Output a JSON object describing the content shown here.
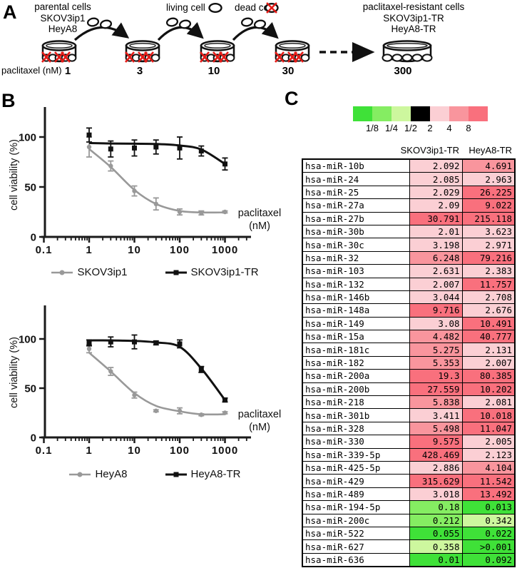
{
  "panel_a": {
    "label": "A",
    "parental_lines": [
      "parental cells",
      "SKOV3ip1",
      "HeyA8"
    ],
    "living_cell_label": "living cell",
    "dead_cell_label": "dead cell",
    "resistant_lines": [
      "paclitaxel-resistant cells",
      "SKOV3ip1-TR",
      "HeyA8-TR"
    ],
    "dose_axis_label": "paclitaxel (nM)",
    "doses": [
      "1",
      "3",
      "10",
      "30",
      "300"
    ]
  },
  "panel_b": {
    "label": "B"
  },
  "panel_c": {
    "label": "C",
    "scale_legend": {
      "colors": [
        "#3fe138",
        "#85ed62",
        "#cdf79e",
        "#000000",
        "#fbcfd4",
        "#f9959d",
        "#f9707d"
      ],
      "labels": [
        "1/8",
        "1/4",
        "1/2",
        "2",
        "4",
        "8"
      ]
    },
    "column_headers": [
      "SKOV3ip1-TR",
      "HeyA8-TR"
    ],
    "rows": [
      {
        "name": "hsa-miR-10b",
        "values": [
          "2.092",
          "4.691"
        ]
      },
      {
        "name": "hsa-miR-24",
        "values": [
          "2.085",
          "2.963"
        ]
      },
      {
        "name": "hsa-miR-25",
        "values": [
          "2.029",
          "26.225"
        ]
      },
      {
        "name": "hsa-miR-27a",
        "values": [
          "2.09",
          "9.022"
        ]
      },
      {
        "name": "hsa-miR-27b",
        "values": [
          "30.791",
          "215.118"
        ]
      },
      {
        "name": "hsa-miR-30b",
        "values": [
          "2.01",
          "3.623"
        ]
      },
      {
        "name": "hsa-miR-30c",
        "values": [
          "3.198",
          "2.971"
        ]
      },
      {
        "name": "hsa-miR-32",
        "values": [
          "6.248",
          "79.216"
        ]
      },
      {
        "name": "hsa-miR-103",
        "values": [
          "2.631",
          "2.383"
        ]
      },
      {
        "name": "hsa-miR-132",
        "values": [
          "2.007",
          "11.757"
        ]
      },
      {
        "name": "hsa-miR-146b",
        "values": [
          "3.044",
          "2.708"
        ]
      },
      {
        "name": "hsa-miR-148a",
        "values": [
          "9.716",
          "2.676"
        ]
      },
      {
        "name": "hsa-miR-149",
        "values": [
          "3.08",
          "10.491"
        ]
      },
      {
        "name": "hsa-miR-15a",
        "values": [
          "4.482",
          "40.777"
        ]
      },
      {
        "name": "hsa-miR-181c",
        "values": [
          "5.275",
          "2.131"
        ]
      },
      {
        "name": "hsa-miR-182",
        "values": [
          "5.353",
          "2.007"
        ]
      },
      {
        "name": "hsa-miR-200a",
        "values": [
          "19.3",
          "80.385"
        ]
      },
      {
        "name": "hsa-miR-200b",
        "values": [
          "27.559",
          "10.202"
        ]
      },
      {
        "name": "hsa-miR-218",
        "values": [
          "5.838",
          "2.081"
        ]
      },
      {
        "name": "hsa-miR-301b",
        "values": [
          "3.411",
          "10.018"
        ]
      },
      {
        "name": "hsa-miR-328",
        "values": [
          "5.498",
          "11.047"
        ]
      },
      {
        "name": "hsa-miR-330",
        "values": [
          "9.575",
          "2.005"
        ]
      },
      {
        "name": "hsa-miR-339-5p",
        "values": [
          "428.469",
          "2.123"
        ]
      },
      {
        "name": "hsa-miR-425-5p",
        "values": [
          "2.886",
          "4.104"
        ]
      },
      {
        "name": "hsa-miR-429",
        "values": [
          "315.629",
          "11.542"
        ]
      },
      {
        "name": "hsa-miR-489",
        "values": [
          "3.018",
          "13.492"
        ]
      },
      {
        "name": "hsa-miR-194-5p",
        "values": [
          "0.18",
          "0.013"
        ]
      },
      {
        "name": "hsa-miR-200c",
        "values": [
          "0.212",
          "0.342"
        ]
      },
      {
        "name": "hsa-miR-522",
        "values": [
          "0.055",
          "0.022"
        ]
      },
      {
        "name": "hsa-miR-627",
        "values": [
          "0.358",
          ">0.001"
        ]
      },
      {
        "name": "hsa-miR-636",
        "values": [
          "0.01",
          "0.092"
        ]
      }
    ]
  },
  "chart_data": [
    {
      "type": "line",
      "title": "",
      "xscale": "log",
      "xlabel": "paclitaxel (nM)",
      "xlabel_lines": [
        "paclitaxel",
        "(nM)"
      ],
      "ylabel": "cell viability (%)",
      "x": [
        1,
        3,
        10,
        30,
        100,
        300,
        1000
      ],
      "xticks": [
        "0.1",
        "1",
        "10",
        "100",
        "1000"
      ],
      "yticks": [
        0,
        50,
        100
      ],
      "ylim": [
        0,
        130
      ],
      "legend_position": "bottom",
      "series": [
        {
          "name": "SKOV3ip1",
          "color": "#999999",
          "marker": "circle",
          "values": [
            90,
            71,
            46,
            33,
            25,
            24,
            25
          ],
          "errors": [
            10,
            5,
            5,
            6,
            3,
            2,
            1
          ],
          "curve": [
            88,
            70,
            47,
            33,
            26,
            24.5,
            24.5
          ]
        },
        {
          "name": "SKOV3ip1-TR",
          "color": "#111111",
          "marker": "square",
          "values": [
            102,
            88,
            89,
            90,
            89,
            86,
            73
          ],
          "errors": [
            7,
            8,
            8,
            7,
            11,
            5,
            6
          ],
          "curve": [
            94,
            93.5,
            93.3,
            93,
            91.5,
            87.5,
            73
          ]
        }
      ]
    },
    {
      "type": "line",
      "title": "",
      "xscale": "log",
      "xlabel": "paclitaxel (nM)",
      "xlabel_lines": [
        "paclitaxel",
        "(nM)"
      ],
      "ylabel": "cell viability (%)",
      "x": [
        1,
        3,
        10,
        30,
        100,
        300,
        1000
      ],
      "xticks": [
        "0.1",
        "1",
        "10",
        "100",
        "1000"
      ],
      "yticks": [
        0,
        50,
        100
      ],
      "ylim": [
        0,
        130
      ],
      "legend_position": "bottom",
      "series": [
        {
          "name": "HeyA8",
          "color": "#999999",
          "marker": "circle",
          "values": [
            90,
            67,
            43,
            27,
            27,
            23,
            25
          ],
          "errors": [
            4,
            4,
            3,
            1,
            3,
            1,
            1
          ],
          "curve": [
            86,
            67,
            45,
            32,
            26.5,
            23.5,
            23.5
          ]
        },
        {
          "name": "HeyA8-TR",
          "color": "#111111",
          "marker": "square",
          "values": [
            96,
            97,
            97,
            96,
            95,
            69,
            38
          ],
          "errors": [
            3,
            5,
            7,
            2,
            4,
            3,
            2
          ],
          "curve": [
            98.5,
            98.5,
            98,
            96.5,
            92,
            70,
            38
          ]
        }
      ]
    }
  ]
}
